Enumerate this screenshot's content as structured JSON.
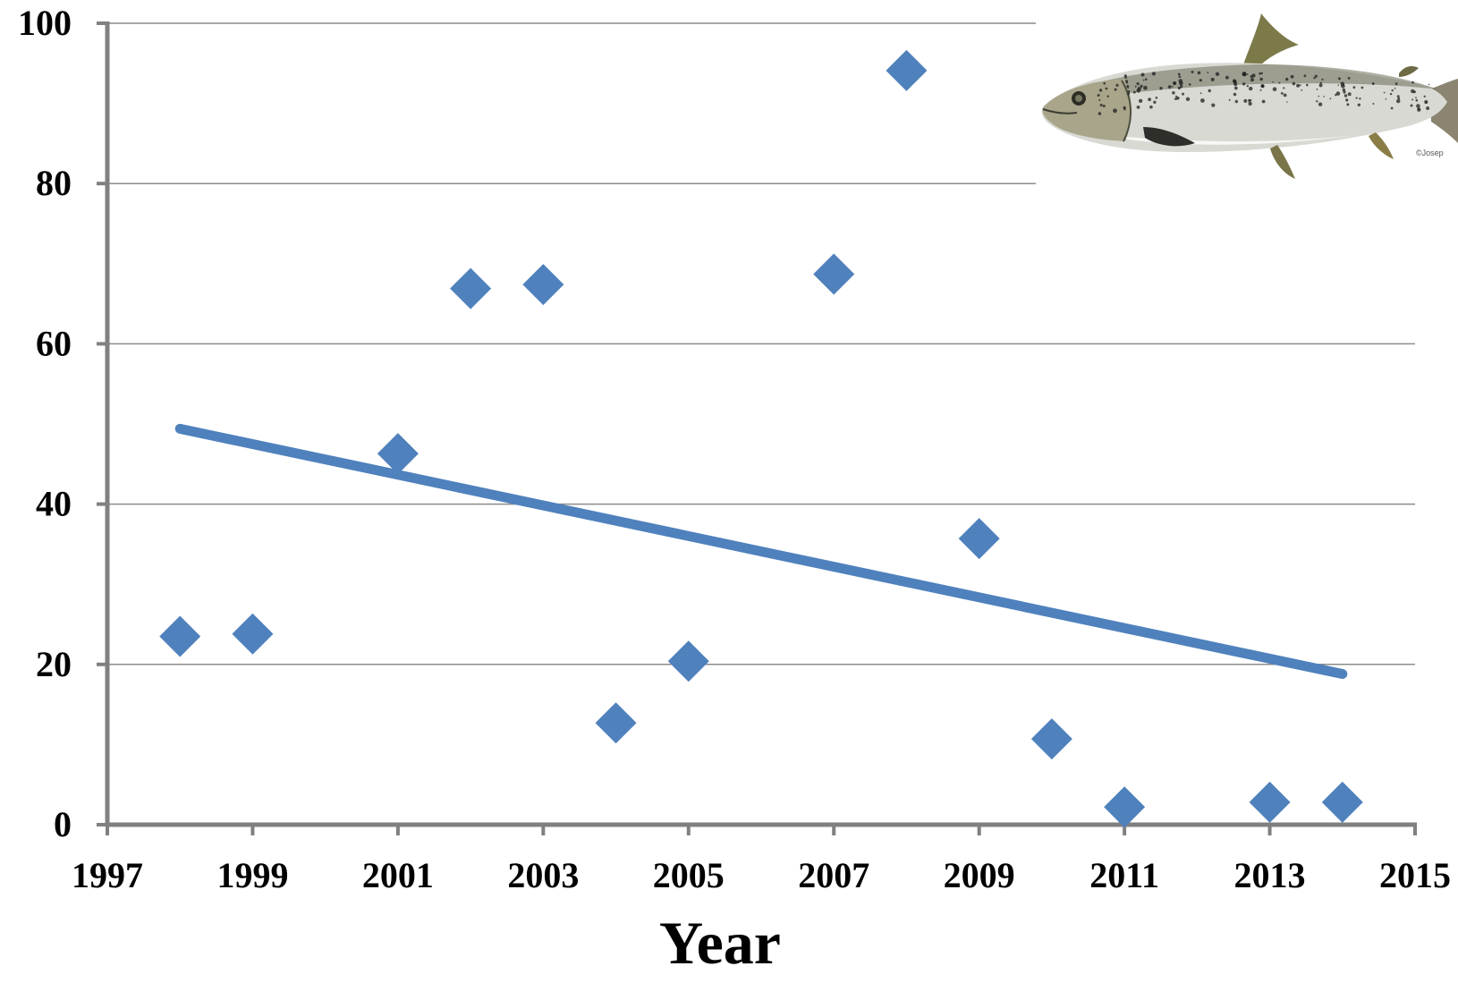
{
  "chart_data": {
    "type": "scatter",
    "title": "",
    "xlabel": "Year",
    "ylabel": "",
    "xlim": [
      1997,
      2015
    ],
    "ylim": [
      0,
      100
    ],
    "x_ticks": [
      1997,
      1999,
      2001,
      2003,
      2005,
      2007,
      2009,
      2011,
      2013,
      2015
    ],
    "y_ticks": [
      0,
      20,
      40,
      60,
      80,
      100
    ],
    "grid": "horizontal",
    "legend": "none",
    "series": [
      {
        "marker": "diamond",
        "color": "#4f81bd",
        "points": [
          {
            "x": 1998,
            "y": 23.5
          },
          {
            "x": 1999,
            "y": 23.8
          },
          {
            "x": 2001,
            "y": 46.3
          },
          {
            "x": 2002,
            "y": 66.9
          },
          {
            "x": 2003,
            "y": 67.4
          },
          {
            "x": 2004,
            "y": 12.7
          },
          {
            "x": 2005,
            "y": 20.4
          },
          {
            "x": 2007,
            "y": 68.7
          },
          {
            "x": 2008,
            "y": 94.1
          },
          {
            "x": 2009,
            "y": 35.7
          },
          {
            "x": 2010,
            "y": 10.7
          },
          {
            "x": 2011,
            "y": 2.2
          },
          {
            "x": 2013,
            "y": 2.8
          },
          {
            "x": 2014,
            "y": 2.8
          }
        ]
      }
    ],
    "trendline": {
      "color": "#4f81bd",
      "x": [
        1998,
        2014
      ],
      "y": [
        49.4,
        18.8
      ]
    }
  },
  "image": {
    "subject": "salmon-illustration",
    "credit": "©Josep"
  },
  "colors": {
    "axis": "#808080",
    "grid": "#8c8c8c",
    "marker": "#4f81bd"
  }
}
